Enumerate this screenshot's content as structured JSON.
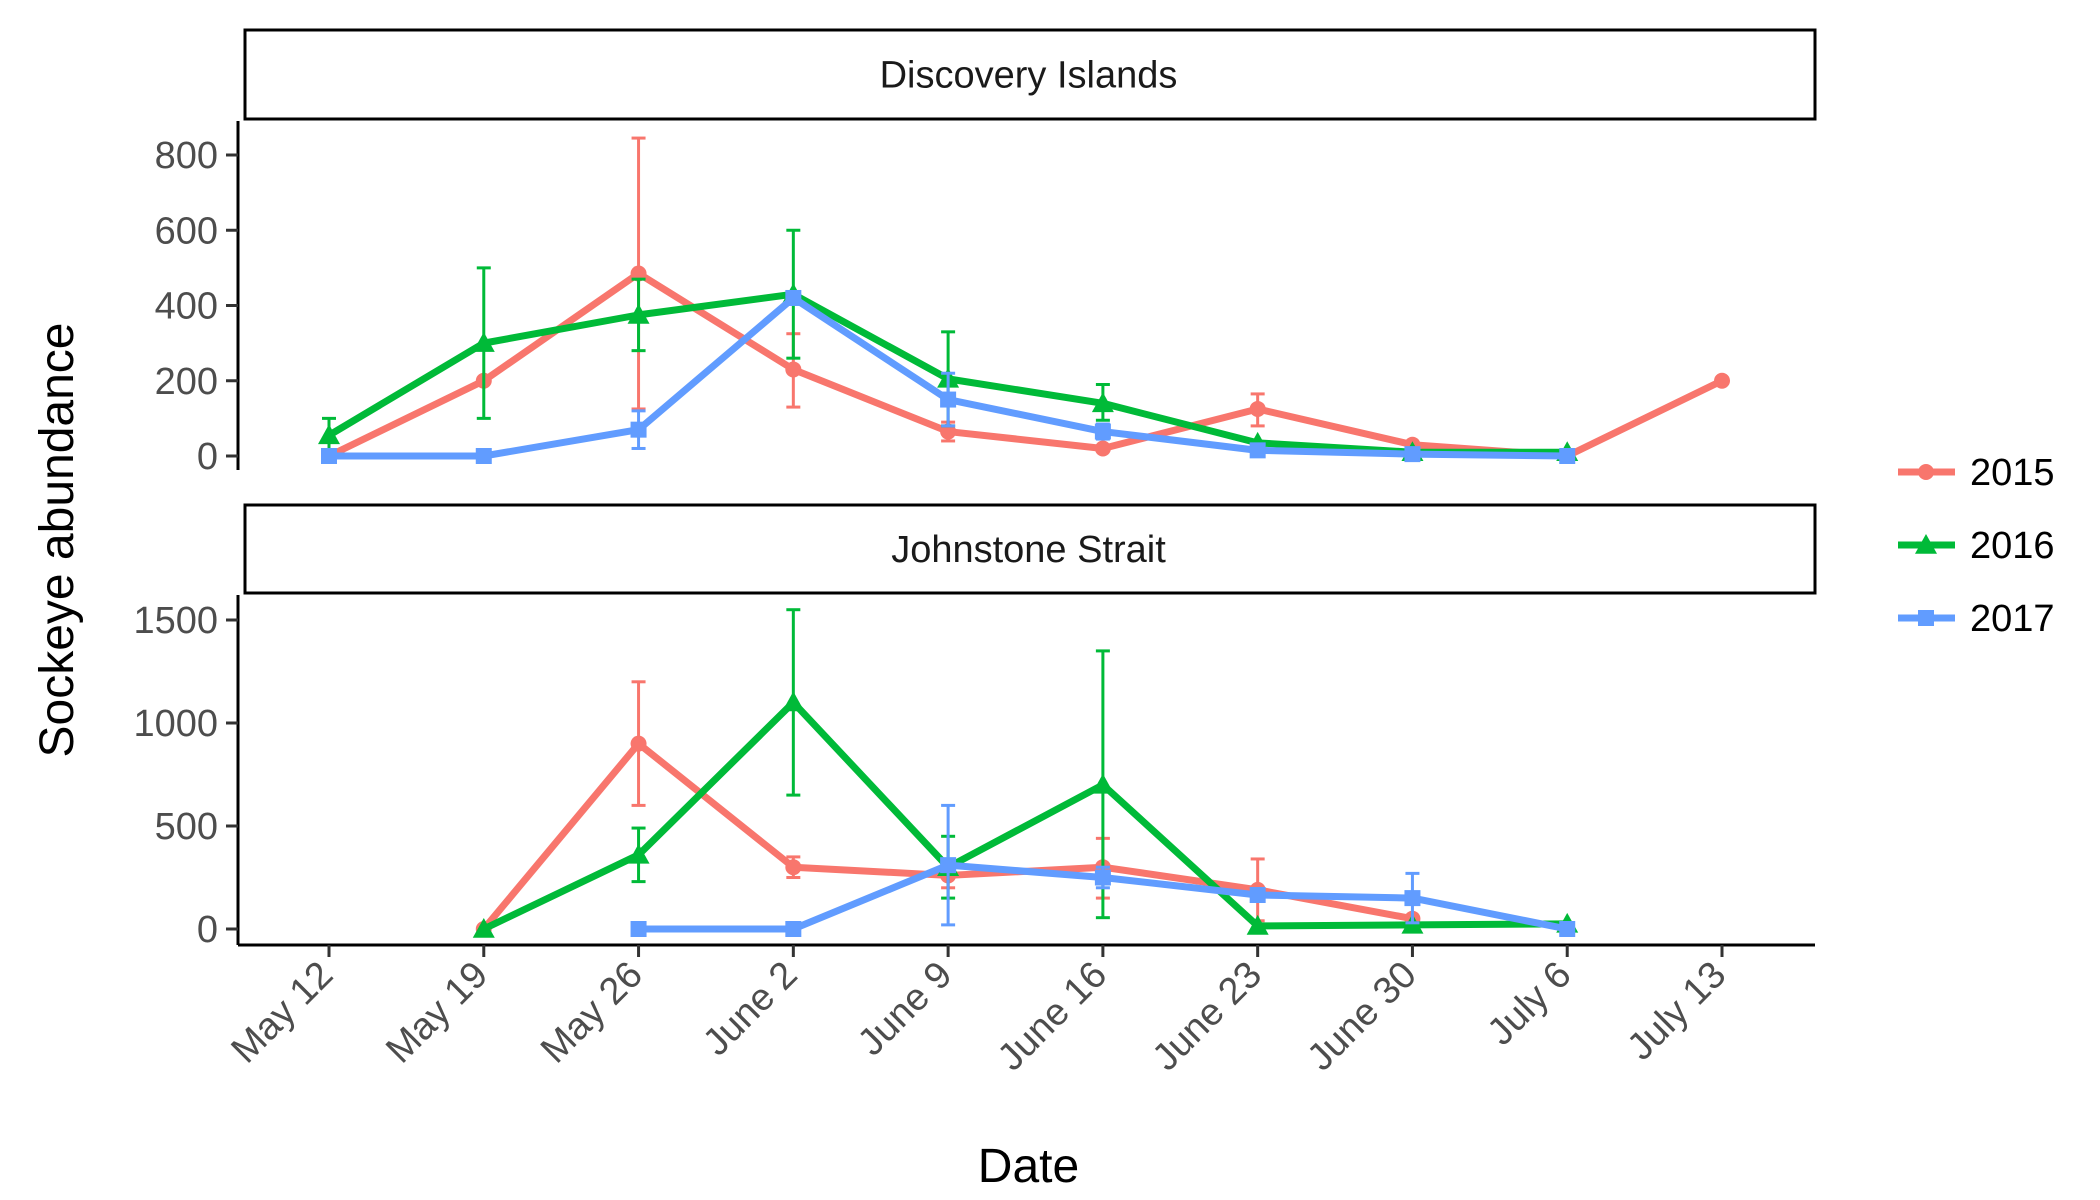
{
  "chart_data": {
    "type": "line",
    "xlabel": "Date",
    "ylabel": "Sockeye abundance",
    "x_ticks": [
      "May 12",
      "May 19",
      "May 26",
      "June 2",
      "June 9",
      "June 16",
      "June 23",
      "June 30",
      "July 6",
      "July 13"
    ],
    "x_tick_days": [
      0,
      7,
      14,
      21,
      28,
      35,
      42,
      49,
      56,
      63
    ],
    "x_tick_dates": [
      "May 12",
      "May 19",
      "May 26",
      "June 2",
      "June 9",
      "June 16",
      "June 23",
      "June 30",
      "July 6",
      "July 13"
    ],
    "legend": {
      "position": "right",
      "entries": [
        {
          "name": "2015",
          "color": "#F8766D",
          "marker": "circle"
        },
        {
          "name": "2016",
          "color": "#00BA38",
          "marker": "triangle"
        },
        {
          "name": "2017",
          "color": "#619CFF",
          "marker": "square"
        }
      ]
    },
    "panels": [
      {
        "title": "Discovery Islands",
        "ylim": [
          -30,
          880
        ],
        "y_ticks": [
          0,
          200,
          400,
          600,
          800
        ],
        "series": [
          {
            "name": "2015",
            "points": [
              {
                "x": "May 12",
                "y": 0
              },
              {
                "x": "May 19",
                "y": 200
              },
              {
                "x": "May 26",
                "y": 485,
                "lo": 125,
                "hi": 845
              },
              {
                "x": "June 2",
                "y": 230,
                "lo": 130,
                "hi": 325
              },
              {
                "x": "June 9",
                "y": 65,
                "lo": 40,
                "hi": 90
              },
              {
                "x": "June 16",
                "y": 20
              },
              {
                "x": "June 23",
                "y": 125,
                "lo": 80,
                "hi": 165
              },
              {
                "x": "June 30",
                "y": 30
              },
              {
                "x": "July 6",
                "y": 0
              },
              {
                "x": "July 13",
                "y": 200
              }
            ]
          },
          {
            "name": "2016",
            "points": [
              {
                "x": "May 12",
                "y": 55,
                "lo": 10,
                "hi": 100
              },
              {
                "x": "May 19",
                "y": 300,
                "lo": 100,
                "hi": 500
              },
              {
                "x": "May 26",
                "y": 375,
                "lo": 280,
                "hi": 470
              },
              {
                "x": "June 2",
                "y": 430,
                "lo": 260,
                "hi": 600
              },
              {
                "x": "June 9",
                "y": 205,
                "lo": 80,
                "hi": 330
              },
              {
                "x": "June 16",
                "y": 140,
                "lo": 95,
                "hi": 190
              },
              {
                "x": "June 23",
                "y": 35
              },
              {
                "x": "June 30",
                "y": 10
              },
              {
                "x": "July 6",
                "y": 10
              }
            ]
          },
          {
            "name": "2017",
            "points": [
              {
                "x": "May 12",
                "y": 0
              },
              {
                "x": "May 19",
                "y": 0
              },
              {
                "x": "May 26",
                "y": 70,
                "lo": 20,
                "hi": 120
              },
              {
                "x": "June 2",
                "y": 420
              },
              {
                "x": "June 9",
                "y": 150,
                "lo": 80,
                "hi": 220
              },
              {
                "x": "June 16",
                "y": 65,
                "lo": 45,
                "hi": 85
              },
              {
                "x": "June 23",
                "y": 15
              },
              {
                "x": "June 30",
                "y": 5
              },
              {
                "x": "July 6",
                "y": 0
              }
            ]
          }
        ]
      },
      {
        "title": "Johnstone Strait",
        "ylim": [
          -75,
          1640
        ],
        "y_ticks": [
          0,
          500,
          1000,
          1500
        ],
        "series": [
          {
            "name": "2015",
            "points": [
              {
                "x": "May 19",
                "y": 0
              },
              {
                "x": "May 26",
                "y": 900,
                "lo": 600,
                "hi": 1200
              },
              {
                "x": "June 2",
                "y": 300,
                "lo": 250,
                "hi": 350
              },
              {
                "x": "June 9",
                "y": 260,
                "lo": 200,
                "hi": 320
              },
              {
                "x": "June 16",
                "y": 300,
                "lo": 150,
                "hi": 440
              },
              {
                "x": "June 23",
                "y": 190,
                "lo": 40,
                "hi": 340
              },
              {
                "x": "June 30",
                "y": 50
              }
            ]
          },
          {
            "name": "2016",
            "points": [
              {
                "x": "May 19",
                "y": 0
              },
              {
                "x": "May 26",
                "y": 360,
                "lo": 230,
                "hi": 490
              },
              {
                "x": "June 2",
                "y": 1100,
                "lo": 650,
                "hi": 1550
              },
              {
                "x": "June 9",
                "y": 300,
                "lo": 150,
                "hi": 450
              },
              {
                "x": "June 16",
                "y": 700,
                "lo": 55,
                "hi": 1350
              },
              {
                "x": "June 23",
                "y": 15
              },
              {
                "x": "June 30",
                "y": 20
              },
              {
                "x": "July 6",
                "y": 25
              }
            ]
          },
          {
            "name": "2017",
            "points": [
              {
                "x": "May 26",
                "y": 0
              },
              {
                "x": "June 2",
                "y": 0
              },
              {
                "x": "June 9",
                "y": 310,
                "lo": 20,
                "hi": 600
              },
              {
                "x": "June 16",
                "y": 250,
                "lo": 200,
                "hi": 300
              },
              {
                "x": "June 23",
                "y": 165
              },
              {
                "x": "June 30",
                "y": 150,
                "lo": 30,
                "hi": 270
              },
              {
                "x": "July 6",
                "y": 0
              }
            ]
          }
        ]
      }
    ]
  }
}
